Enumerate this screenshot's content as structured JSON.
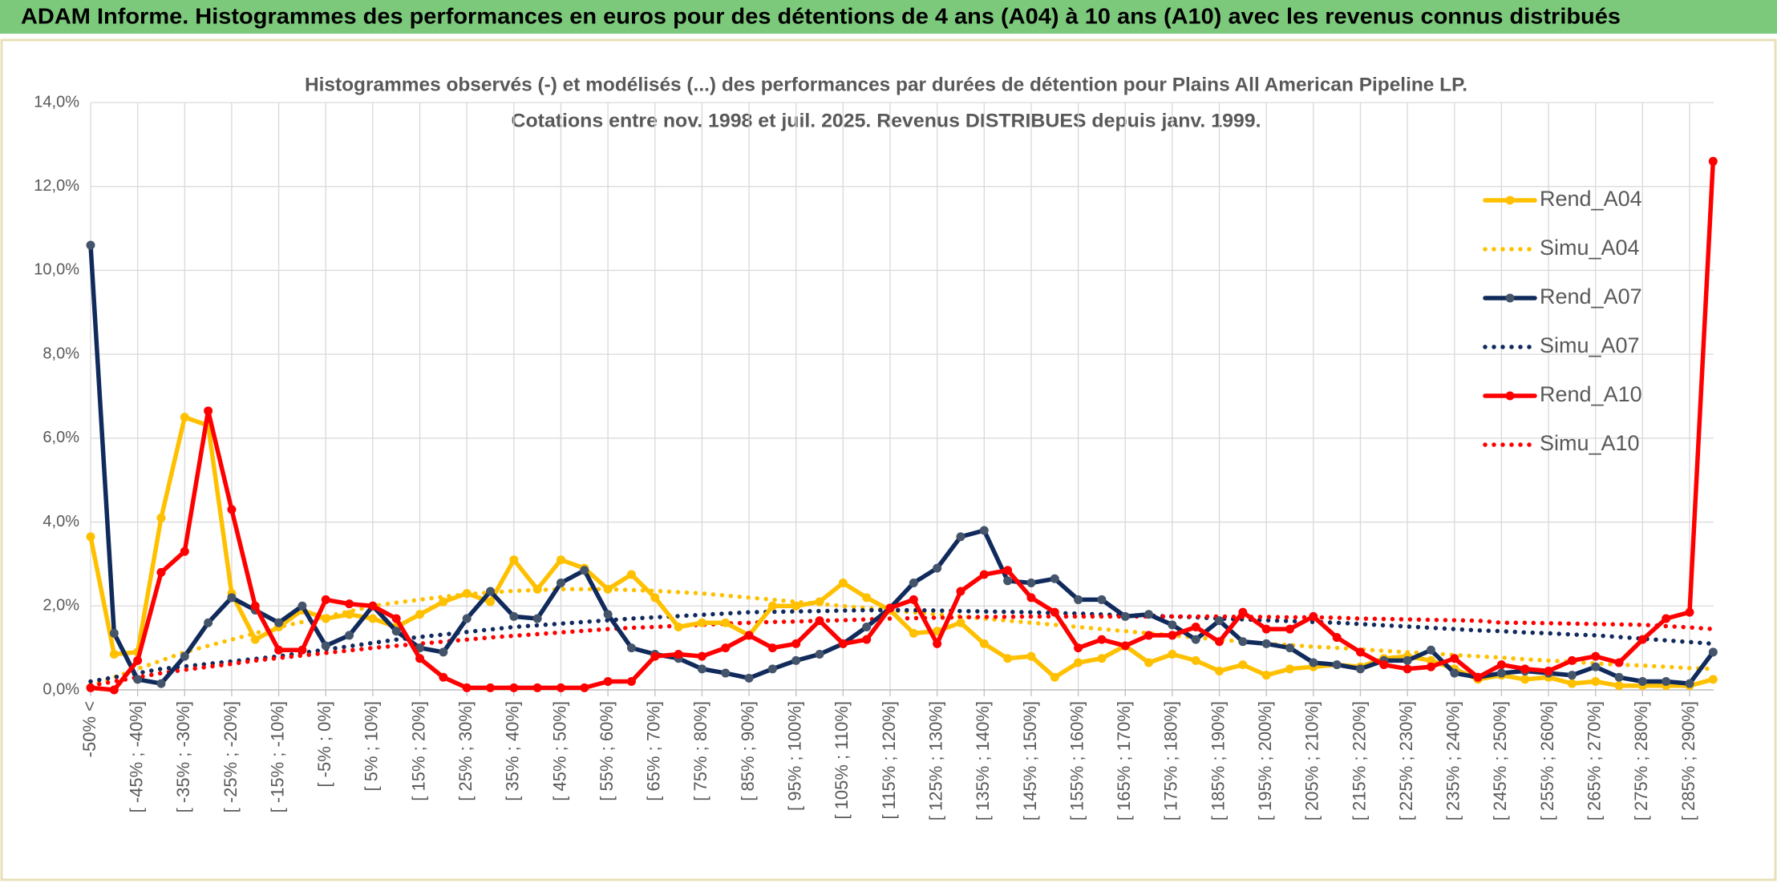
{
  "header": {
    "title": "ADAM Informe. Histogrammes des performances en euros pour des détentions de 4 ans (A04) à 10 ans (A10) avec les revenus connus distribués"
  },
  "chart_data": {
    "type": "line",
    "title": "Histogrammes observés (-) et modélisés (...) des performances par durées de détention pour Plains All American Pipeline LP.",
    "subtitle": "Cotations entre nov. 1998 et juil. 2025. Revenus DISTRIBUES depuis janv. 1999.",
    "categories": [
      "-50% <",
      null,
      "[ -45% ; -40%]",
      null,
      "[ -35% ; -30%]",
      null,
      "[ -25% ; -20%]",
      null,
      "[ -15% ; -10%]",
      null,
      "[ -5% ; 0%]",
      null,
      "[ 5% ; 10%]",
      null,
      "[ 15% ; 20%]",
      null,
      "[ 25% ; 30%]",
      null,
      "[ 35% ; 40%]",
      null,
      "[ 45% ; 50%]",
      null,
      "[ 55% ; 60%]",
      null,
      "[ 65% ; 70%]",
      null,
      "[ 75% ; 80%]",
      null,
      "[ 85% ; 90%]",
      null,
      "[ 95% ; 100%]",
      null,
      "[ 105% ; 110%]",
      null,
      "[ 115% ; 120%]",
      null,
      "[ 125% ; 130%]",
      null,
      "[ 135% ; 140%]",
      null,
      "[ 145% ; 150%]",
      null,
      "[ 155% ; 160%]",
      null,
      "[ 165% ; 170%]",
      null,
      "[ 175% ; 180%]",
      null,
      "[ 185% ; 190%]",
      null,
      "[ 195% ; 200%]",
      null,
      "[ 205% ; 210%]",
      null,
      "[ 215% ; 220%]",
      null,
      "[ 225% ; 230%]",
      null,
      "[ 235% ; 240%]",
      null,
      "[ 245% ; 250%]",
      null,
      "[ 255% ; 260%]",
      null,
      "[ 265% ; 270%]",
      null,
      "[ 275% ; 280%]",
      null,
      "[ 285% ; 290%]",
      null
    ],
    "ylim": [
      0,
      14
    ],
    "yticks": [
      {
        "value": 0,
        "label": "0,0%"
      },
      {
        "value": 2,
        "label": "2,0%"
      },
      {
        "value": 4,
        "label": "4,0%"
      },
      {
        "value": 6,
        "label": "6,0%"
      },
      {
        "value": 8,
        "label": "8,0%"
      },
      {
        "value": 10,
        "label": "10,0%"
      },
      {
        "value": 12,
        "label": "12,0%"
      },
      {
        "value": 14,
        "label": "14,0%"
      }
    ],
    "grid": true,
    "legend": "right",
    "series": [
      {
        "name": "Rend_A04",
        "color": "#ffc000",
        "style": "solid",
        "values": [
          3.65,
          0.85,
          0.9,
          4.1,
          6.5,
          6.3,
          2.3,
          1.2,
          1.5,
          1.9,
          1.7,
          1.8,
          1.7,
          1.5,
          1.8,
          2.1,
          2.3,
          2.1,
          3.1,
          2.4,
          3.1,
          2.9,
          2.4,
          2.75,
          2.2,
          1.5,
          1.6,
          1.6,
          1.3,
          2.0,
          2.0,
          2.1,
          2.55,
          2.2,
          1.9,
          1.35,
          1.4,
          1.6,
          1.1,
          0.75,
          0.8,
          0.3,
          0.65,
          0.75,
          1.05,
          0.65,
          0.85,
          0.7,
          0.45,
          0.6,
          0.35,
          0.5,
          0.55,
          0.6,
          0.55,
          0.75,
          0.8,
          0.7,
          0.5,
          0.25,
          0.35,
          0.25,
          0.3,
          0.15,
          0.2,
          0.1,
          0.1,
          0.1,
          0.1,
          0.25
        ]
      },
      {
        "name": "Simu_A04",
        "color": "#ffc000",
        "style": "dotted",
        "values": [
          0.1,
          0.3,
          0.5,
          0.7,
          0.9,
          1.05,
          1.2,
          1.35,
          1.5,
          1.62,
          1.75,
          1.87,
          2.0,
          2.08,
          2.15,
          2.22,
          2.28,
          2.32,
          2.36,
          2.38,
          2.4,
          2.4,
          2.4,
          2.38,
          2.36,
          2.33,
          2.3,
          2.25,
          2.2,
          2.15,
          2.1,
          2.05,
          2.0,
          1.95,
          1.9,
          1.85,
          1.8,
          1.75,
          1.7,
          1.65,
          1.6,
          1.55,
          1.5,
          1.45,
          1.4,
          1.35,
          1.3,
          1.25,
          1.2,
          1.15,
          1.1,
          1.07,
          1.03,
          1.0,
          0.97,
          0.93,
          0.9,
          0.87,
          0.83,
          0.8,
          0.77,
          0.73,
          0.7,
          0.67,
          0.63,
          0.6,
          0.58,
          0.55,
          0.52,
          0.5
        ]
      },
      {
        "name": "Rend_A07",
        "color": "#112a5c",
        "style": "solid",
        "values": [
          10.6,
          1.35,
          0.25,
          0.15,
          0.8,
          1.6,
          2.2,
          1.9,
          1.6,
          2.0,
          1.05,
          1.3,
          2.0,
          1.4,
          1.0,
          0.9,
          1.7,
          2.35,
          1.75,
          1.7,
          2.55,
          2.85,
          1.8,
          1.0,
          0.85,
          0.75,
          0.5,
          0.4,
          0.28,
          0.5,
          0.7,
          0.85,
          1.1,
          1.5,
          1.95,
          2.55,
          2.9,
          3.65,
          3.8,
          2.6,
          2.55,
          2.65,
          2.15,
          2.15,
          1.75,
          1.8,
          1.55,
          1.2,
          1.65,
          1.15,
          1.1,
          1.0,
          0.65,
          0.6,
          0.5,
          0.7,
          0.7,
          0.95,
          0.4,
          0.3,
          0.4,
          0.45,
          0.4,
          0.35,
          0.55,
          0.3,
          0.2,
          0.2,
          0.15,
          0.9
        ]
      },
      {
        "name": "Simu_A07",
        "color": "#112a5c",
        "style": "dotted",
        "values": [
          0.2,
          0.3,
          0.4,
          0.5,
          0.56,
          0.62,
          0.68,
          0.74,
          0.8,
          0.88,
          0.96,
          1.04,
          1.12,
          1.2,
          1.26,
          1.32,
          1.38,
          1.44,
          1.5,
          1.54,
          1.58,
          1.62,
          1.66,
          1.7,
          1.73,
          1.76,
          1.79,
          1.82,
          1.85,
          1.86,
          1.87,
          1.88,
          1.89,
          1.9,
          1.9,
          1.9,
          1.89,
          1.88,
          1.87,
          1.86,
          1.85,
          1.83,
          1.82,
          1.8,
          1.78,
          1.77,
          1.75,
          1.73,
          1.7,
          1.68,
          1.66,
          1.64,
          1.62,
          1.6,
          1.57,
          1.54,
          1.51,
          1.48,
          1.45,
          1.42,
          1.4,
          1.37,
          1.35,
          1.32,
          1.3,
          1.26,
          1.22,
          1.18,
          1.14,
          1.1
        ]
      },
      {
        "name": "Rend_A10",
        "color": "#ff0000",
        "style": "solid",
        "values": [
          0.05,
          0.0,
          0.7,
          2.8,
          3.3,
          6.65,
          4.3,
          2.0,
          0.95,
          0.95,
          2.15,
          2.05,
          2.0,
          1.7,
          0.75,
          0.3,
          0.05,
          0.05,
          0.05,
          0.05,
          0.05,
          0.05,
          0.2,
          0.2,
          0.8,
          0.85,
          0.8,
          1.0,
          1.3,
          1.0,
          1.1,
          1.65,
          1.1,
          1.2,
          1.95,
          2.15,
          1.1,
          2.35,
          2.75,
          2.85,
          2.2,
          1.85,
          1.0,
          1.2,
          1.05,
          1.3,
          1.3,
          1.5,
          1.15,
          1.85,
          1.45,
          1.45,
          1.75,
          1.25,
          0.9,
          0.6,
          0.5,
          0.55,
          0.75,
          0.3,
          0.6,
          0.5,
          0.45,
          0.7,
          0.8,
          0.65,
          1.2,
          1.7,
          1.85,
          12.6
        ]
      },
      {
        "name": "Simu_A10",
        "color": "#ff0000",
        "style": "dotted",
        "values": [
          0.1,
          0.2,
          0.3,
          0.4,
          0.48,
          0.55,
          0.62,
          0.7,
          0.76,
          0.82,
          0.88,
          0.94,
          1.0,
          1.05,
          1.1,
          1.15,
          1.2,
          1.25,
          1.29,
          1.33,
          1.37,
          1.41,
          1.45,
          1.48,
          1.5,
          1.53,
          1.55,
          1.58,
          1.6,
          1.62,
          1.63,
          1.65,
          1.66,
          1.68,
          1.7,
          1.71,
          1.72,
          1.73,
          1.74,
          1.74,
          1.75,
          1.75,
          1.75,
          1.75,
          1.75,
          1.75,
          1.75,
          1.75,
          1.75,
          1.74,
          1.74,
          1.73,
          1.73,
          1.72,
          1.7,
          1.69,
          1.68,
          1.67,
          1.66,
          1.65,
          1.6,
          1.6,
          1.59,
          1.58,
          1.57,
          1.56,
          1.55,
          1.52,
          1.49,
          1.45
        ]
      }
    ]
  }
}
